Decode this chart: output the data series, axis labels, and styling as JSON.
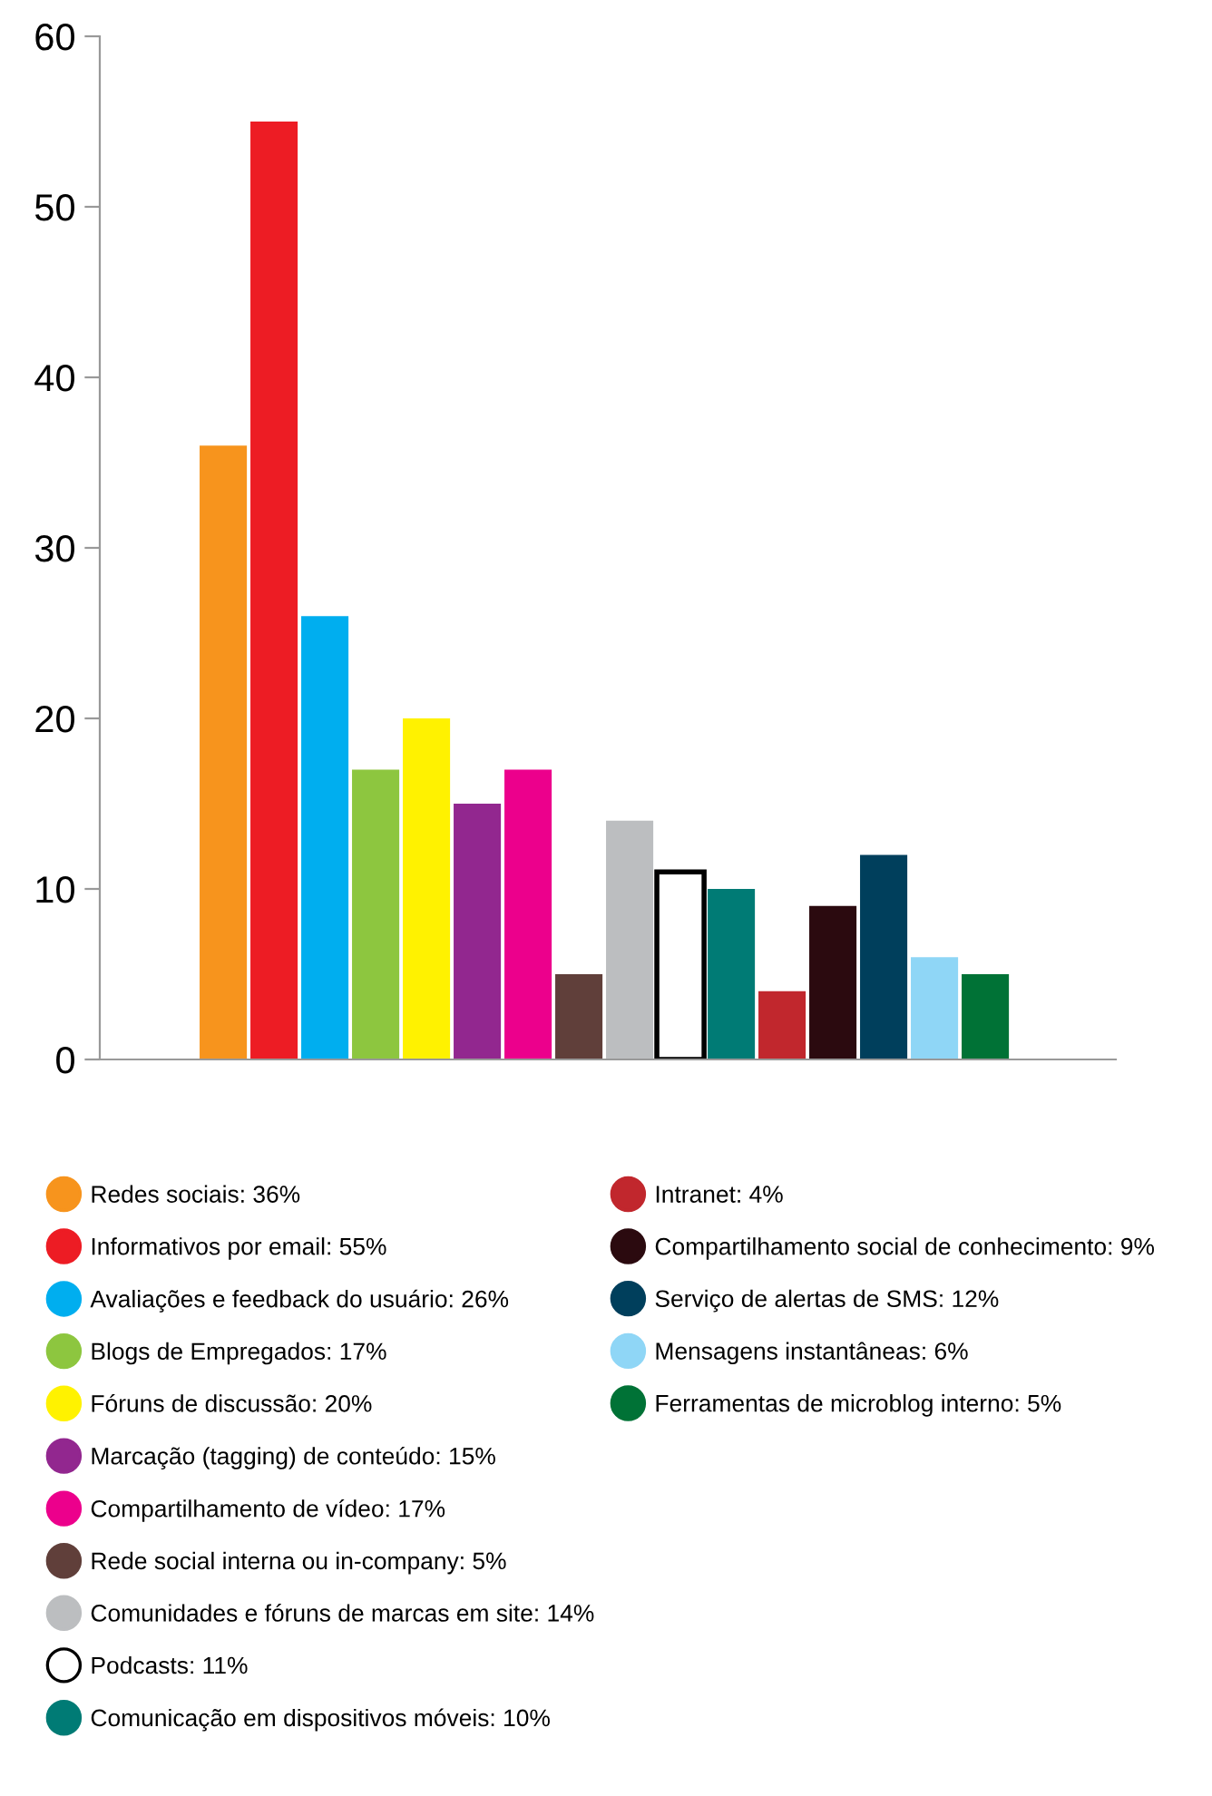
{
  "chart_data": {
    "type": "bar",
    "categories": [
      null,
      null,
      null,
      null,
      null,
      null,
      null,
      null,
      null,
      null,
      null,
      null,
      null,
      null,
      null,
      null
    ],
    "series": [
      {
        "name": "Redes sociais: 36%",
        "color": "#f7941d",
        "values": [
          36,
          null,
          null,
          null,
          null,
          null,
          null,
          null,
          null,
          null,
          null,
          null,
          null,
          null,
          null,
          null
        ]
      },
      {
        "name": "Informativos por email: 55%",
        "color": "#ed1c24",
        "values": [
          null,
          55,
          null,
          null,
          null,
          null,
          null,
          null,
          null,
          null,
          null,
          null,
          null,
          null,
          null,
          null
        ]
      },
      {
        "name": "Avaliações e feedback do usuário: 26%",
        "color": "#00aeef",
        "values": [
          null,
          null,
          26,
          null,
          null,
          null,
          null,
          null,
          null,
          null,
          null,
          null,
          null,
          null,
          null,
          null
        ]
      },
      {
        "name": "Blogs de Empregados: 17%",
        "color": "#8dc63f",
        "values": [
          null,
          null,
          null,
          17,
          null,
          null,
          null,
          null,
          null,
          null,
          null,
          null,
          null,
          null,
          null,
          null
        ]
      },
      {
        "name": "Fóruns de discussão: 20%",
        "color": "#fff200",
        "values": [
          null,
          null,
          null,
          null,
          20,
          null,
          null,
          null,
          null,
          null,
          null,
          null,
          null,
          null,
          null,
          null
        ]
      },
      {
        "name": "Marcação (tagging) de conteúdo: 15%",
        "color": "#92278f",
        "values": [
          null,
          null,
          null,
          null,
          null,
          15,
          null,
          null,
          null,
          null,
          null,
          null,
          null,
          null,
          null,
          null
        ]
      },
      {
        "name": "Compartilhamento de vídeo: 17%",
        "color": "#ec008c",
        "values": [
          null,
          null,
          null,
          null,
          null,
          null,
          17,
          null,
          null,
          null,
          null,
          null,
          null,
          null,
          null,
          null
        ]
      },
      {
        "name": "Rede social interna ou in-company: 5%",
        "color": "#603f3a",
        "values": [
          null,
          null,
          null,
          null,
          null,
          null,
          null,
          5,
          null,
          null,
          null,
          null,
          null,
          null,
          null,
          null
        ]
      },
      {
        "name": "Comunidades e fóruns de marcas em site: 14%",
        "color": "#bcbec0",
        "values": [
          null,
          null,
          null,
          null,
          null,
          null,
          null,
          null,
          14,
          null,
          null,
          null,
          null,
          null,
          null,
          null
        ]
      },
      {
        "name": "Podcasts: 11%",
        "color": "#ffffff",
        "values": [
          null,
          null,
          null,
          null,
          null,
          null,
          null,
          null,
          null,
          11,
          null,
          null,
          null,
          null,
          null,
          null
        ]
      },
      {
        "name": "Comunicação em dispositivos móveis: 10%",
        "color": "#007b75",
        "values": [
          null,
          null,
          null,
          null,
          null,
          null,
          null,
          null,
          null,
          null,
          10,
          null,
          null,
          null,
          null,
          null
        ]
      },
      {
        "name": "Intranet: 4%",
        "color": "#c1272d",
        "values": [
          null,
          null,
          null,
          null,
          null,
          null,
          null,
          null,
          null,
          null,
          null,
          4,
          null,
          null,
          null,
          null
        ]
      },
      {
        "name": "Compartilhamento social de conhecimento: 9%",
        "color": "#2b0a0f",
        "values": [
          null,
          null,
          null,
          null,
          null,
          null,
          null,
          null,
          null,
          null,
          null,
          null,
          9,
          null,
          null,
          null
        ]
      },
      {
        "name": "Serviço de alertas de SMS: 12%",
        "color": "#003f5c",
        "values": [
          null,
          null,
          null,
          null,
          null,
          null,
          null,
          null,
          null,
          null,
          null,
          null,
          null,
          12,
          null,
          null
        ]
      },
      {
        "name": "Mensagens instantâneas: 6%",
        "color": "#8fd6f6",
        "values": [
          null,
          null,
          null,
          null,
          null,
          null,
          null,
          null,
          null,
          null,
          null,
          null,
          null,
          null,
          6,
          null
        ]
      },
      {
        "name": "Ferramentas de microblog interno: 5%",
        "color": "#007236",
        "values": [
          null,
          null,
          null,
          null,
          null,
          null,
          null,
          null,
          null,
          null,
          null,
          null,
          null,
          null,
          null,
          5
        ]
      }
    ],
    "ylim": [
      0,
      60
    ],
    "yticks": [
      0,
      10,
      20,
      30,
      40,
      50,
      60
    ],
    "stacked": true,
    "tick_labels": "y",
    "grid": false,
    "legend": "bottom"
  }
}
